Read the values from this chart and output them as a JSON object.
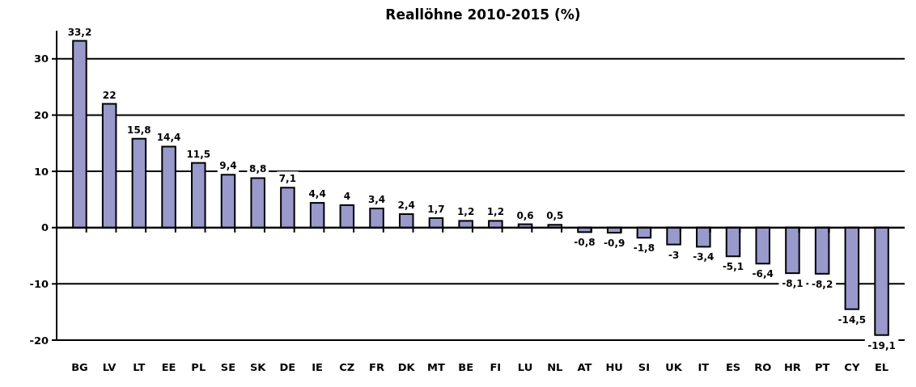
{
  "chart_data": {
    "type": "bar",
    "title": "Reallöhne 2010-2015 (%)",
    "categories": [
      "BG",
      "LV",
      "LT",
      "EE",
      "PL",
      "SE",
      "SK",
      "DE",
      "IE",
      "CZ",
      "FR",
      "DK",
      "MT",
      "BE",
      "FI",
      "LU",
      "NL",
      "AT",
      "HU",
      "SI",
      "UK",
      "IT",
      "ES",
      "RO",
      "HR",
      "PT",
      "CY",
      "EL"
    ],
    "values": [
      33.2,
      22,
      15.8,
      14.4,
      11.5,
      9.4,
      8.8,
      7.1,
      4.4,
      4,
      3.4,
      2.4,
      1.7,
      1.2,
      1.2,
      0.6,
      0.5,
      -0.8,
      -0.9,
      -1.8,
      -3,
      -3.4,
      -5.1,
      -6.4,
      -8.1,
      -8.2,
      -14.5,
      -19.1
    ],
    "value_labels": [
      "33,2",
      "22",
      "15,8",
      "14,4",
      "11,5",
      "9,4",
      "8,8",
      "7,1",
      "4,4",
      "4",
      "3,4",
      "2,4",
      "1,7",
      "1,2",
      "1,2",
      "0,6",
      "0,5",
      "-0,8",
      "-0,9",
      "-1,8",
      "-3",
      "-3,4",
      "-5,1",
      "-6,4",
      "-8,1",
      "-8,2",
      "-14,5",
      "-19,1"
    ],
    "color": "#9999cc",
    "ylim": [
      -20,
      35
    ],
    "yticks": [
      -20,
      -10,
      0,
      10,
      20,
      30
    ],
    "grid": "y"
  }
}
